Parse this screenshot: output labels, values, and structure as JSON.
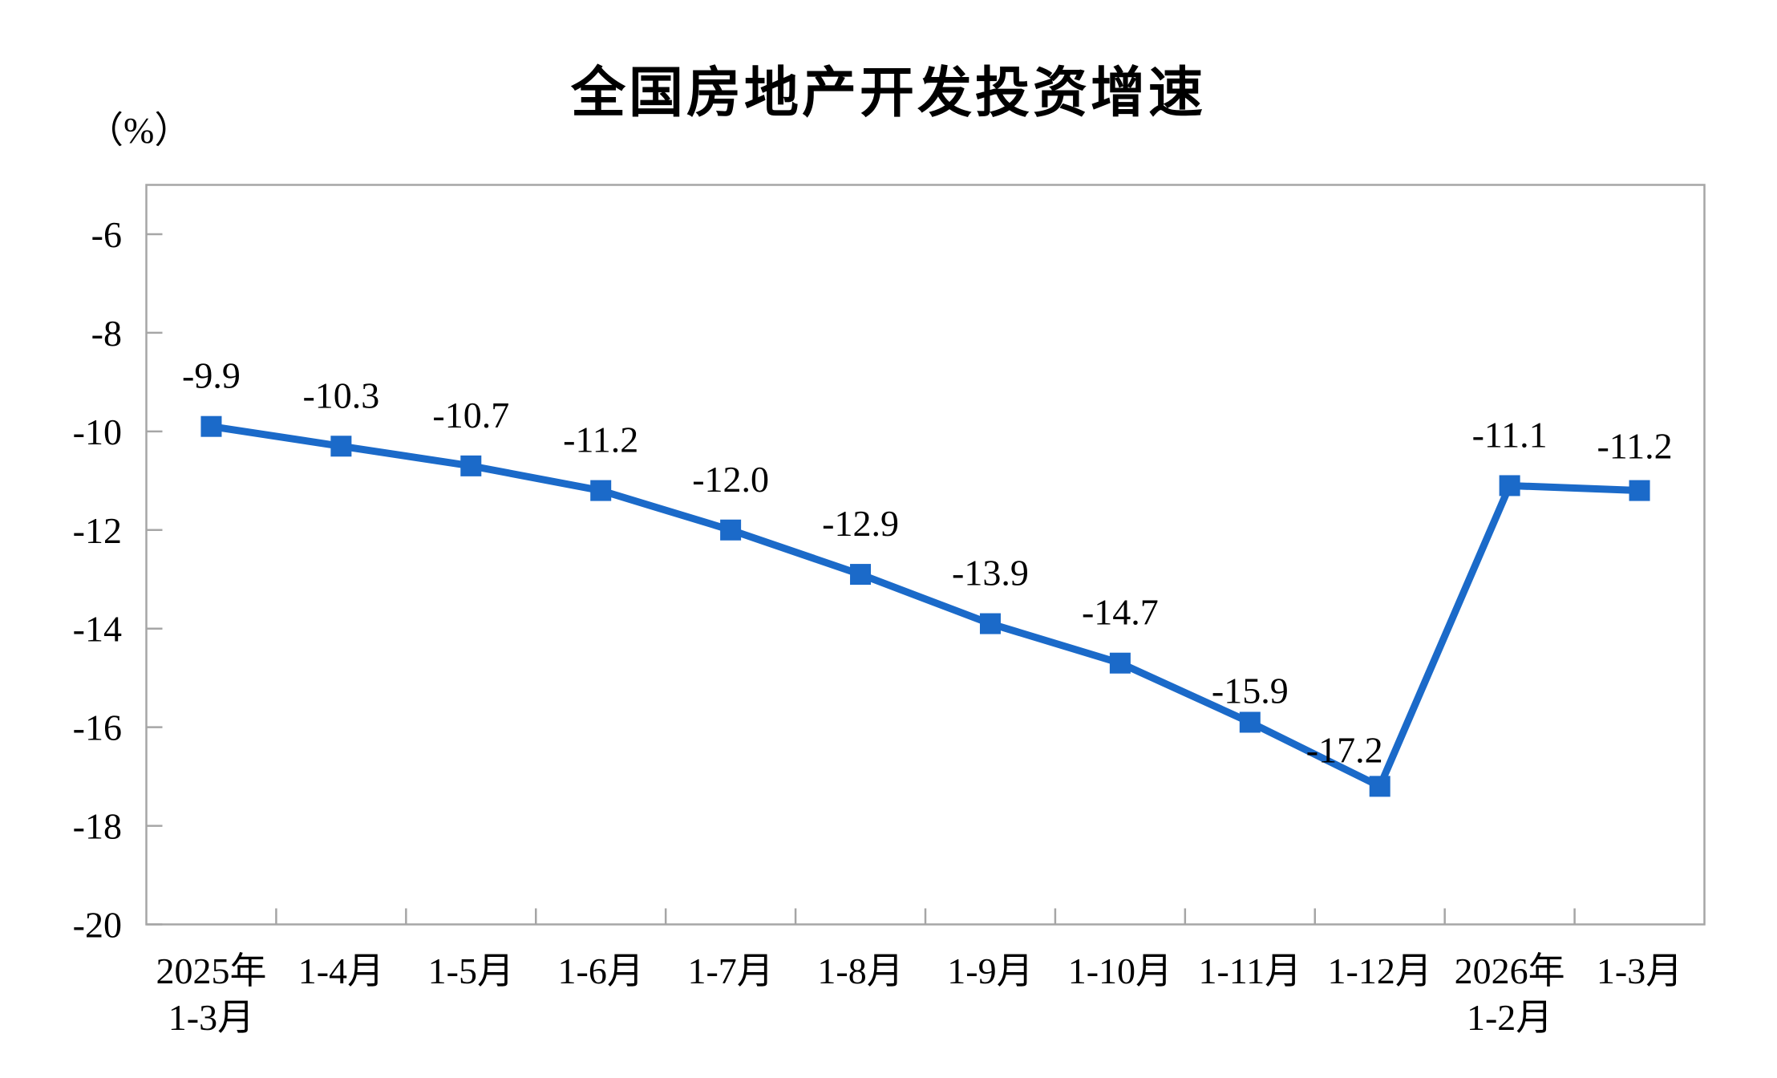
{
  "page": {
    "background": "#ffffff"
  },
  "chart_data": {
    "type": "line",
    "title": "全国房地产开发投资增速",
    "unit_label": "（%）",
    "categories": [
      [
        "2025年",
        "1-3月"
      ],
      [
        "1-4月"
      ],
      [
        "1-5月"
      ],
      [
        "1-6月"
      ],
      [
        "1-7月"
      ],
      [
        "1-8月"
      ],
      [
        "1-9月"
      ],
      [
        "1-10月"
      ],
      [
        "1-11月"
      ],
      [
        "1-12月"
      ],
      [
        "2026年",
        "1-2月"
      ],
      [
        "1-3月"
      ]
    ],
    "values": [
      -9.9,
      -10.3,
      -10.7,
      -11.2,
      -12.0,
      -12.9,
      -13.9,
      -14.7,
      -15.9,
      -17.2,
      -11.1,
      -11.2
    ],
    "point_labels": [
      "-9.9",
      "-10.3",
      "-10.7",
      "-11.2",
      "-12.0",
      "-12.9",
      "-13.9",
      "-14.7",
      "-15.9",
      "-17.2",
      "-11.1",
      "-11.2"
    ],
    "xlabel": "",
    "ylabel": "（%）",
    "ylim": [
      -20,
      -5
    ],
    "yticks": [
      -6,
      -8,
      -10,
      -12,
      -14,
      -16,
      -18,
      -20
    ],
    "grid": false,
    "legend": "none",
    "marker": "square",
    "colors": {
      "line": "#1b6ac9",
      "marker": "#1b6ac9",
      "axis": "#a6a6a6",
      "text": "#000000",
      "title": "#000000"
    }
  }
}
